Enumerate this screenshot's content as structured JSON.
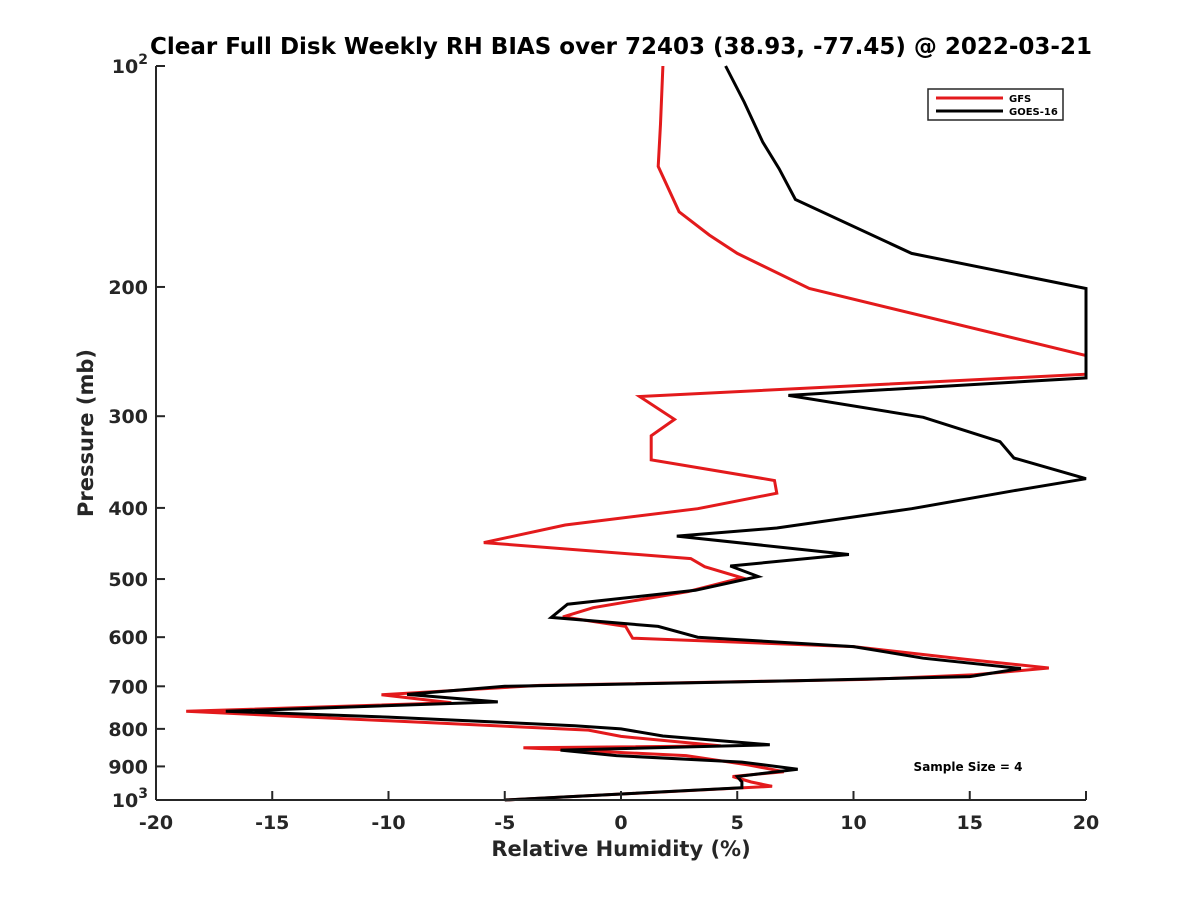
{
  "chart_data": {
    "type": "line",
    "title": "Clear Full Disk Weekly RH BIAS over 72403 (38.93, -77.45) @ 2022-03-21",
    "xlabel": "Relative Humidity (%)",
    "ylabel": "Pressure (mb)",
    "xlim": [
      -20,
      20
    ],
    "ylim": [
      100,
      1000
    ],
    "y_scale": "log",
    "y_reversed": true,
    "x_ticks": [
      -20,
      -15,
      -10,
      -5,
      0,
      5,
      10,
      15,
      20
    ],
    "x_tick_labels": [
      "-20",
      "-15",
      "-10",
      "-5",
      "0",
      "5",
      "10",
      "15",
      "20"
    ],
    "y_ticks": [
      100,
      200,
      300,
      400,
      500,
      600,
      700,
      800,
      900,
      1000
    ],
    "y_tick_labels": [
      {
        "base": "10",
        "exp": "2"
      },
      {
        "base": "200",
        "exp": ""
      },
      {
        "base": "300",
        "exp": ""
      },
      {
        "base": "400",
        "exp": ""
      },
      {
        "base": "500",
        "exp": ""
      },
      {
        "base": "600",
        "exp": ""
      },
      {
        "base": "700",
        "exp": ""
      },
      {
        "base": "800",
        "exp": ""
      },
      {
        "base": "900",
        "exp": ""
      },
      {
        "base": "10",
        "exp": "3"
      }
    ],
    "grid": false,
    "legend_position": "top-right",
    "annotation": "Sample Size = 4",
    "series": [
      {
        "name": "GFS",
        "color": "#e31a1c",
        "points": [
          [
            1.8,
            100
          ],
          [
            1.7,
            120
          ],
          [
            1.6,
            137
          ],
          [
            2.5,
            158
          ],
          [
            3.8,
            170
          ],
          [
            5,
            180
          ],
          [
            8.1,
            201
          ],
          [
            20,
            248
          ],
          [
            20,
            263
          ],
          [
            0.8,
            282
          ],
          [
            2.3,
            303
          ],
          [
            1.3,
            319
          ],
          [
            1.3,
            344
          ],
          [
            6.6,
            367
          ],
          [
            6.7,
            382
          ],
          [
            3.3,
            401
          ],
          [
            -2.4,
            422
          ],
          [
            -5.9,
            446
          ],
          [
            3,
            469
          ],
          [
            3.6,
            481
          ],
          [
            5.2,
            498
          ],
          [
            2.9,
            520
          ],
          [
            -1.2,
            547
          ],
          [
            -2.5,
            563
          ],
          [
            0.2,
            580
          ],
          [
            0.5,
            602
          ],
          [
            10,
            618
          ],
          [
            14.8,
            643
          ],
          [
            18.4,
            661
          ],
          [
            15.2,
            675
          ],
          [
            10.6,
            685
          ],
          [
            -3.5,
            698
          ],
          [
            -10.3,
            719
          ],
          [
            -7.3,
            737
          ],
          [
            -18.7,
            757
          ],
          [
            -10,
            780
          ],
          [
            -1.4,
            803
          ],
          [
            0,
            819
          ],
          [
            4.3,
            844
          ],
          [
            -4.2,
            849
          ],
          [
            2.8,
            870
          ],
          [
            5.5,
            896
          ],
          [
            7,
            915
          ],
          [
            4.8,
            929
          ],
          [
            5.6,
            945
          ],
          [
            6.5,
            958
          ],
          [
            -5,
            1000
          ]
        ]
      },
      {
        "name": "GOES-16",
        "color": "#000000",
        "points": [
          [
            4.5,
            100
          ],
          [
            5.3,
            112
          ],
          [
            6.1,
            127
          ],
          [
            6.8,
            138
          ],
          [
            7.5,
            152
          ],
          [
            12.5,
            180
          ],
          [
            20,
            201
          ],
          [
            20,
            266
          ],
          [
            7.2,
            281
          ],
          [
            13,
            301
          ],
          [
            16.3,
            325
          ],
          [
            16.9,
            342
          ],
          [
            20,
            365
          ],
          [
            16.9,
            379
          ],
          [
            12.5,
            401
          ],
          [
            6.7,
            426
          ],
          [
            2.4,
            437
          ],
          [
            9.8,
            463
          ],
          [
            4.7,
            480
          ],
          [
            5.9,
            496
          ],
          [
            3.2,
            518
          ],
          [
            -2.3,
            541
          ],
          [
            -3,
            564
          ],
          [
            1.6,
            580
          ],
          [
            3.3,
            600
          ],
          [
            10,
            618
          ],
          [
            13,
            641
          ],
          [
            17.2,
            662
          ],
          [
            15,
            679
          ],
          [
            7.5,
            688
          ],
          [
            -5,
            700
          ],
          [
            -9.2,
            718
          ],
          [
            -5.3,
            735
          ],
          [
            -17,
            757
          ],
          [
            -10,
            771
          ],
          [
            -2,
            792
          ],
          [
            0,
            800
          ],
          [
            1.8,
            818
          ],
          [
            6.4,
            841
          ],
          [
            -2.6,
            855
          ],
          [
            -0.2,
            870
          ],
          [
            5.2,
            888
          ],
          [
            7.6,
            908
          ],
          [
            5,
            929
          ],
          [
            5.2,
            945
          ],
          [
            5.2,
            962
          ],
          [
            -5,
            1000
          ]
        ]
      }
    ]
  }
}
